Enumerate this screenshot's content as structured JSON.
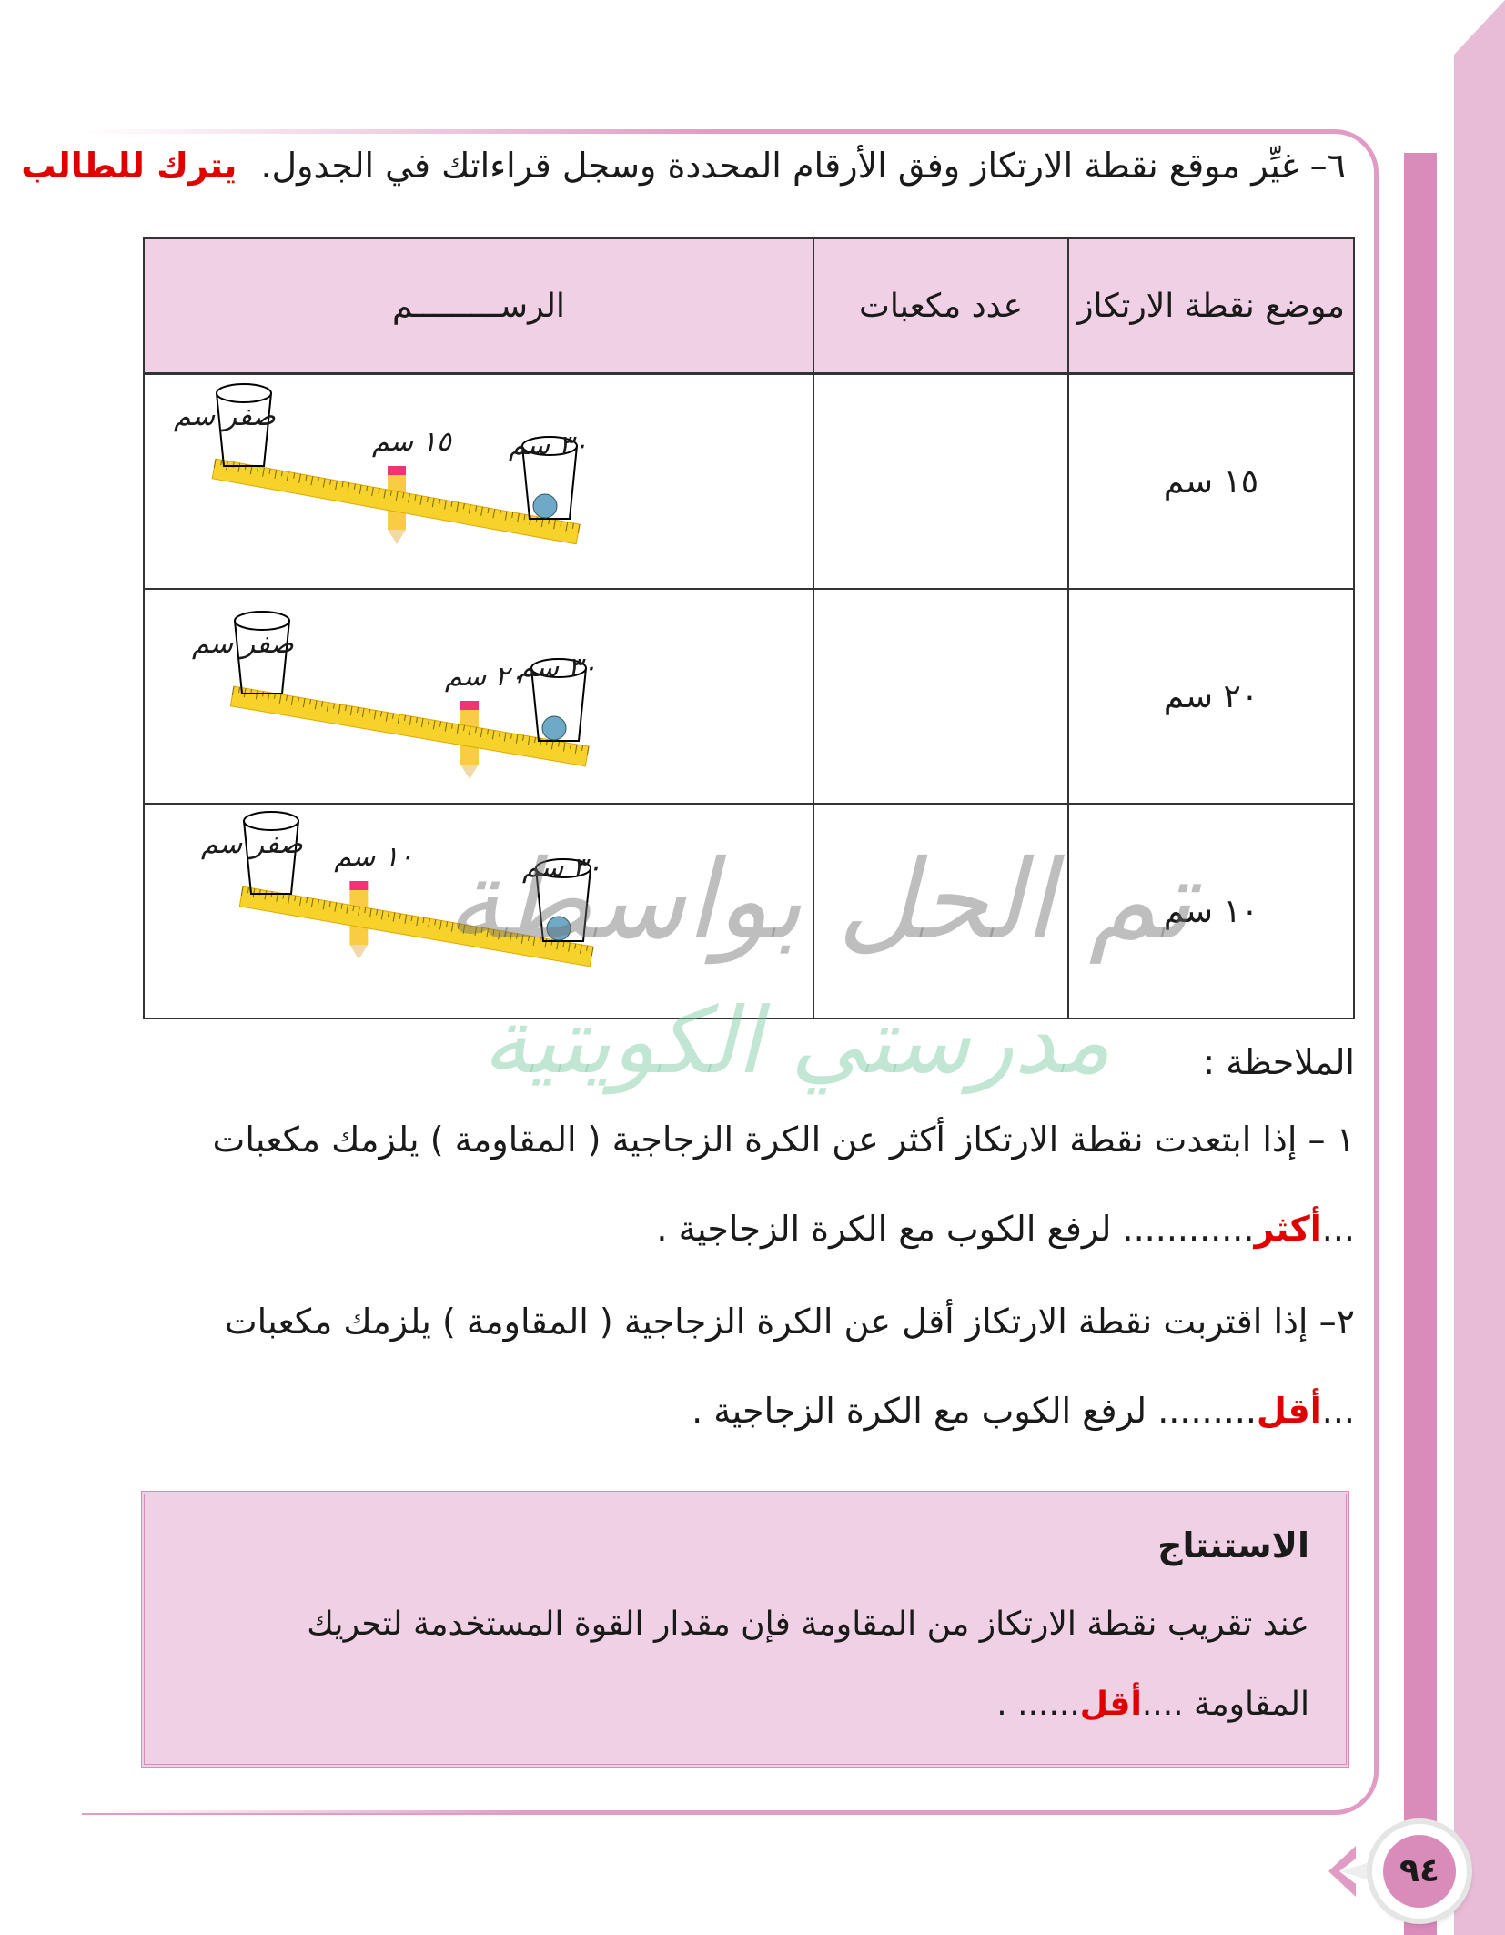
{
  "colors": {
    "accent_pink": "#d98bb9",
    "table_header_bg": "#f0d0e4",
    "answer_red": "#e00000"
  },
  "instruction": {
    "text": "٦– غيِّر موقع نقطة الارتكاز وفق الأرقام المحددة وسجل قراءاتك في الجدول.",
    "answer": "يترك للطالب"
  },
  "table": {
    "headers": [
      "موضع نقطة الارتكاز",
      "عدد مكعبات",
      "الرســـــــــم"
    ],
    "rows": [
      {
        "position": "١٥ سم",
        "cubes": "",
        "labels": {
          "left": "صفر سم",
          "fulcrum": "١٥ سم",
          "right": "٣٠ سم"
        },
        "fulcrum_cm": 15
      },
      {
        "position": "٢٠ سم",
        "cubes": "",
        "labels": {
          "left": "صفر سم",
          "fulcrum": "٢٠ سم",
          "right": "٣٠ سم"
        },
        "fulcrum_cm": 20
      },
      {
        "position": "١٠ سم",
        "cubes": "",
        "labels": {
          "left": "صفر سم",
          "fulcrum": "١٠ سم",
          "right": "٣٠ سم"
        },
        "fulcrum_cm": 10
      }
    ]
  },
  "notes": {
    "title": "الملاحظة :",
    "n1_line1": "١ – إذا ابتعدت نقطة الارتكاز أكثر عن الكرة الزجاجية ( المقاومة ) يلزمك مكعبات",
    "n1_dots": "...",
    "n1_answer": "أكثر",
    "n1_line2": "............ لرفع الكوب مع الكرة الزجاجية .",
    "n2_line1": "٢– إذا اقتربت نقطة الارتكاز أقل عن الكرة الزجاجية ( المقاومة ) يلزمك مكعبات",
    "n2_dots": "...",
    "n2_answer": "أقل",
    "n2_line2": "......... لرفع الكوب مع الكرة الزجاجية ."
  },
  "conclusion": {
    "title": "الاستنتاج",
    "line1": "عند تقريب نقطة الارتكاز من المقاومة فإن مقدار القوة المستخدمة لتحريك",
    "line2_start": "المقاومة ....",
    "answer": "أقل",
    "line2_end": "...... ."
  },
  "watermark": {
    "line1": "تم الحل بواسطة",
    "line2": "مدرستي الكويتية"
  },
  "page_number": "٩٤"
}
